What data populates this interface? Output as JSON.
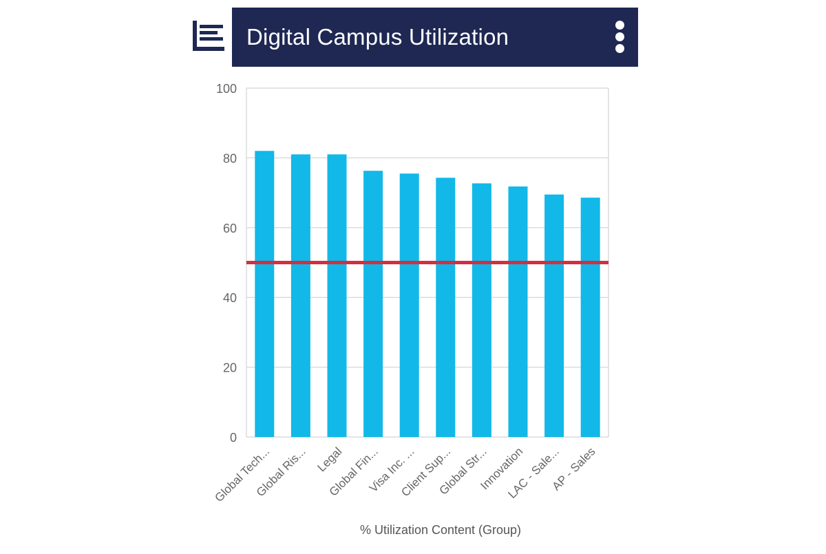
{
  "header": {
    "title": "Digital Campus Utilization",
    "logo_icon": "bar-list-logo-icon",
    "menu_icon": "more-vertical-icon",
    "bg_color": "#1f2853"
  },
  "chart_data": {
    "type": "bar",
    "categories": [
      "Global Tech...",
      "Global Ris...",
      "Legal",
      "Global Fin...",
      "Visa Inc. ...",
      "Client Sup...",
      "Global Str...",
      "Innovation",
      "LAC - Sale...",
      "AP - Sales"
    ],
    "values": [
      82,
      81,
      81,
      76.3,
      75.5,
      74.3,
      72.7,
      71.8,
      69.5,
      68.6
    ],
    "ylim": [
      0,
      100
    ],
    "yticks": [
      0,
      20,
      40,
      60,
      80,
      100
    ],
    "xlabel": "% Utilization Content (Group)",
    "ylabel": "",
    "reference_line": 50,
    "bar_color": "#12b8e8",
    "reference_color": "#d32f3f",
    "grid": true
  }
}
